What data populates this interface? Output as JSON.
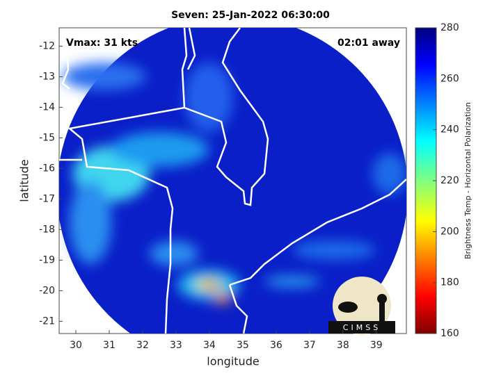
{
  "chart_data": {
    "type": "map",
    "title": "Seven: 25-Jan-2022 06:30:00",
    "annotations": [
      "Vmax: 31 kts",
      "02:01 away"
    ],
    "x_label": "longitude",
    "y_label": "latitude",
    "xlim": [
      29.5,
      39.9
    ],
    "xticks": [
      30,
      31,
      32,
      33,
      34,
      35,
      36,
      37,
      38,
      39
    ],
    "ylim": [
      -21.4,
      -11.4
    ],
    "yticks": [
      -12,
      -13,
      -14,
      -15,
      -16,
      -17,
      -18,
      -19,
      -20,
      -21
    ],
    "colorbar": {
      "label": "Brightness Temp - Horizontal Polarization",
      "lim": [
        160,
        280
      ],
      "ticks": [
        160,
        180,
        200,
        220,
        240,
        260,
        280
      ]
    },
    "logo": "CIMSS"
  }
}
